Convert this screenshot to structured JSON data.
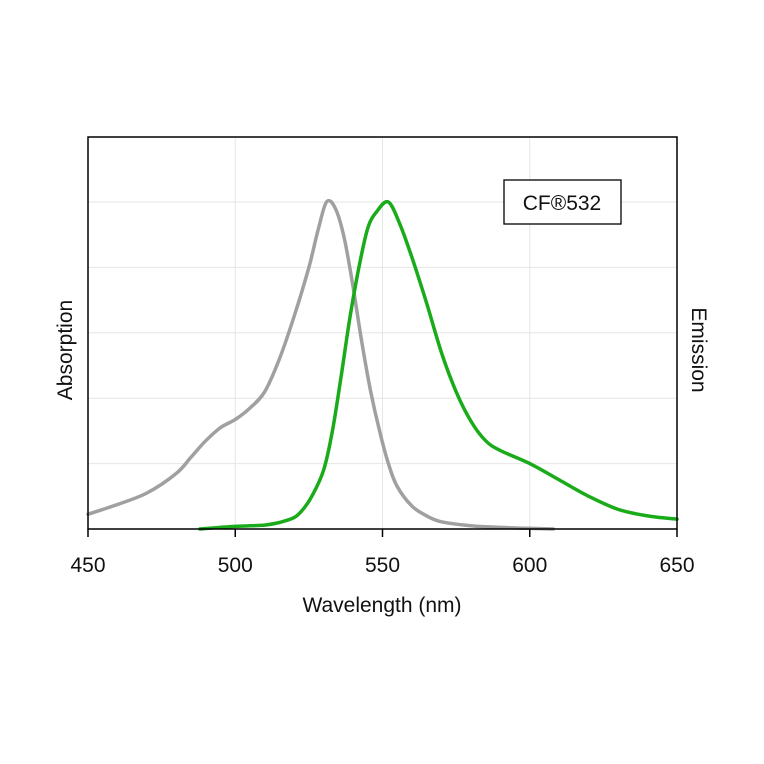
{
  "chart_data": {
    "type": "line",
    "title": "",
    "xlabel": "Wavelength (nm)",
    "ylabel_left": "Absorption",
    "ylabel_right": "Emission",
    "legend_label": "CF®532",
    "legend_position": "top-right",
    "xlim": [
      450,
      650
    ],
    "ylim": [
      0,
      1
    ],
    "x_ticks": [
      450,
      500,
      550,
      600,
      650
    ],
    "x_tick_labels": [
      "450",
      "500",
      "550",
      "600",
      "650"
    ],
    "grid": true,
    "series": [
      {
        "color": "#a0a0a0",
        "x": [
          450,
          460,
          470,
          480,
          485,
          490,
          495,
          500,
          505,
          510,
          515,
          520,
          525,
          528,
          531,
          534,
          537,
          540,
          543,
          546,
          549,
          552,
          555,
          560,
          565,
          570,
          580,
          590,
          600,
          608
        ],
        "y": [
          0.045,
          0.075,
          0.11,
          0.17,
          0.22,
          0.27,
          0.31,
          0.335,
          0.37,
          0.42,
          0.52,
          0.65,
          0.8,
          0.91,
          1.0,
          0.98,
          0.89,
          0.74,
          0.57,
          0.42,
          0.3,
          0.2,
          0.13,
          0.07,
          0.04,
          0.022,
          0.01,
          0.005,
          0.002,
          0.0
        ]
      },
      {
        "color": "#1aab1a",
        "x": [
          488,
          495,
          500,
          505,
          510,
          515,
          520,
          523,
          526,
          530,
          533,
          536,
          539,
          542,
          545,
          548,
          552,
          556,
          560,
          565,
          570,
          575,
          580,
          585,
          590,
          600,
          610,
          620,
          630,
          640,
          650
        ],
        "y": [
          0.0,
          0.005,
          0.008,
          0.01,
          0.012,
          0.02,
          0.035,
          0.06,
          0.1,
          0.18,
          0.3,
          0.47,
          0.65,
          0.8,
          0.92,
          0.97,
          1.0,
          0.93,
          0.83,
          0.69,
          0.54,
          0.42,
          0.33,
          0.27,
          0.24,
          0.2,
          0.15,
          0.1,
          0.06,
          0.04,
          0.03
        ]
      }
    ]
  }
}
